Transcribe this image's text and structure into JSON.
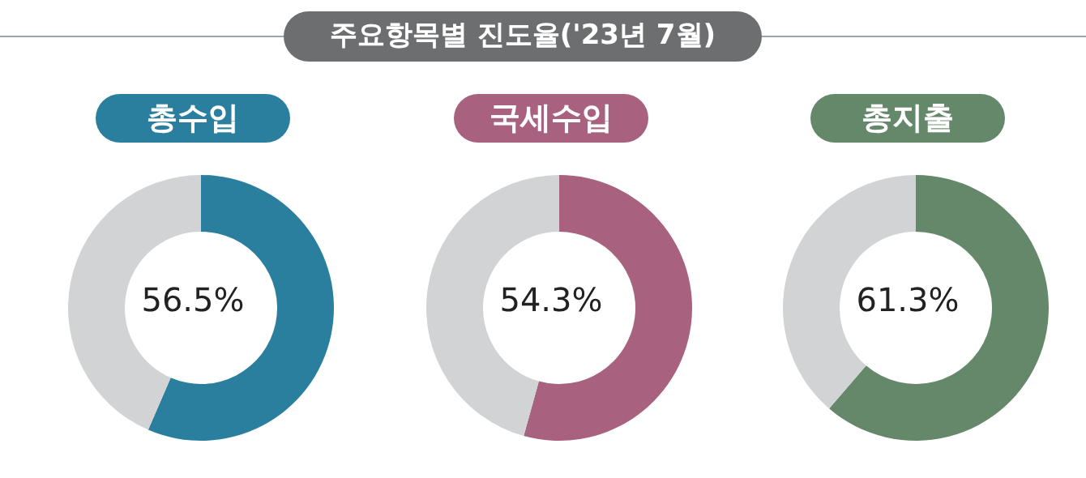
{
  "chart_data": [
    {
      "type": "donut",
      "title": "총수입",
      "annotations": [
        "주요항목별 진도율('23년 7월)",
        "56.5%"
      ],
      "categories": [
        null,
        null
      ],
      "values": [
        56.5,
        43.5
      ],
      "colors": [
        "#2a7f9e",
        "#d1d3d5"
      ]
    },
    {
      "type": "donut",
      "title": "국세수입",
      "annotations": [
        "54.3%"
      ],
      "categories": [
        null,
        null
      ],
      "values": [
        54.3,
        45.7
      ],
      "colors": [
        "#a8617f",
        "#d1d3d5"
      ]
    },
    {
      "type": "donut",
      "title": "총지출",
      "annotations": [
        "61.3%"
      ],
      "categories": [
        null,
        null
      ],
      "values": [
        61.3,
        38.7
      ],
      "colors": [
        "#65876a",
        "#d1d3d5"
      ]
    }
  ]
}
